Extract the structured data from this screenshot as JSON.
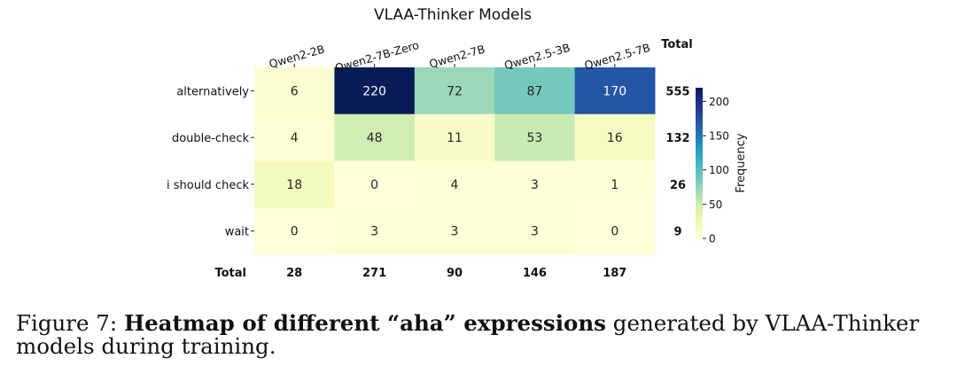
{
  "chart_data": {
    "type": "heatmap",
    "title": "VLAA-Thinker Models",
    "columns": [
      "Qwen2-2B",
      "Qwen2-7B-Zero",
      "Qwen2-7B",
      "Qwen2.5-3B",
      "Qwen2.5-7B"
    ],
    "rows": [
      "alternatively",
      "double-check",
      "i should check",
      "wait"
    ],
    "values": [
      [
        6,
        220,
        72,
        87,
        170
      ],
      [
        4,
        48,
        11,
        53,
        16
      ],
      [
        18,
        0,
        4,
        3,
        1
      ],
      [
        0,
        3,
        3,
        3,
        0
      ]
    ],
    "row_totals": [
      555,
      132,
      26,
      9
    ],
    "column_totals": [
      28,
      271,
      90,
      146,
      187
    ],
    "total_label": "Total",
    "colorbar": {
      "label": "Frequency",
      "min": 0,
      "max": 220,
      "ticks": [
        0,
        50,
        100,
        150,
        200
      ]
    },
    "colormap": "YlGnBu"
  },
  "caption": {
    "prefix": "Figure 7: ",
    "bold": "Heatmap of different “aha” expressions",
    "rest": " generated by VLAA-Thinker models during training."
  }
}
